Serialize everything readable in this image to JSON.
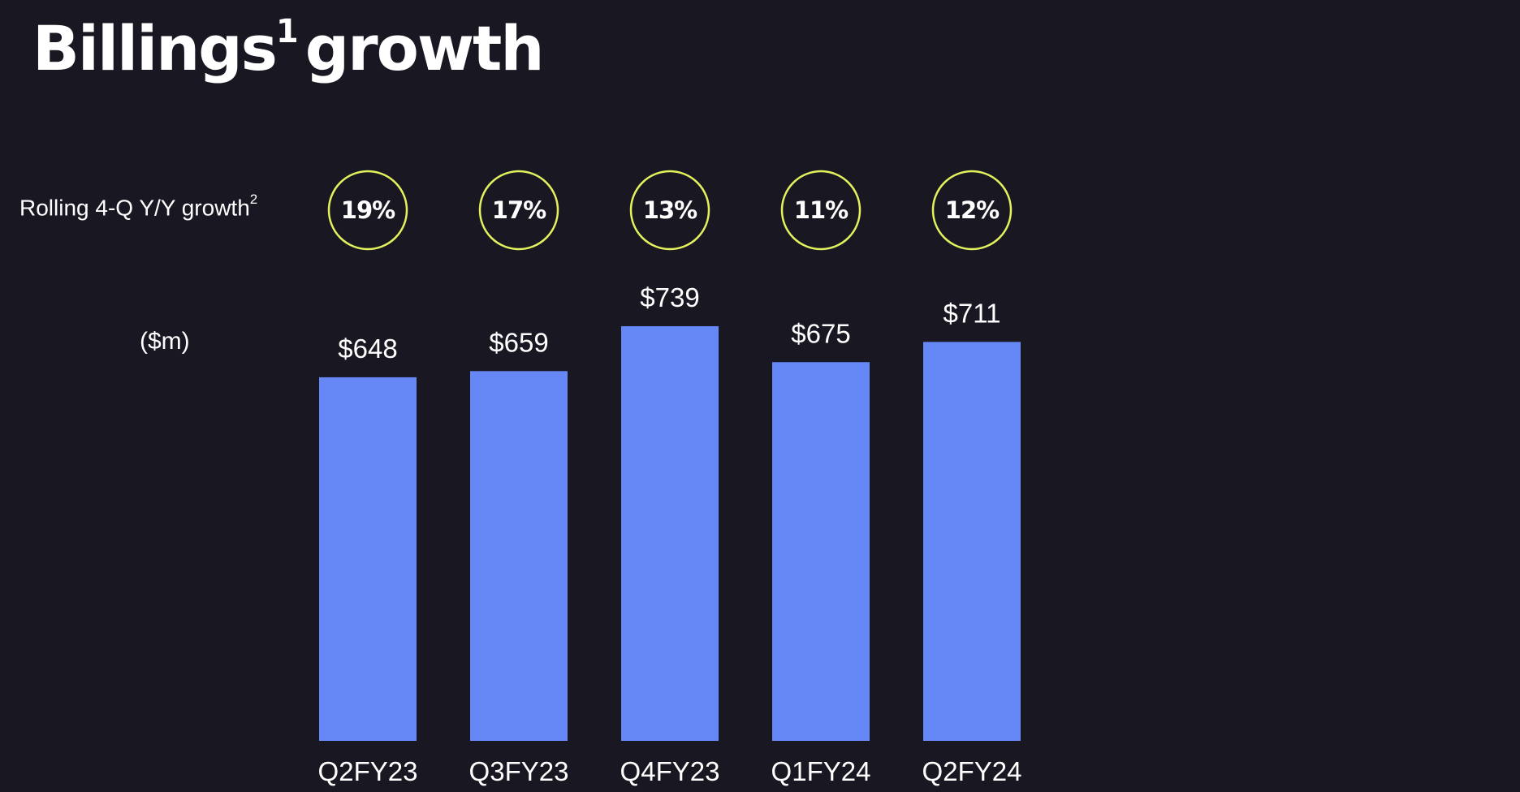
{
  "title": {
    "main": "Billings",
    "superscript": "1",
    "suffix": "growth"
  },
  "growth_row_label": {
    "text": "Rolling 4-Q Y/Y growth",
    "superscript": "2"
  },
  "units_label": "($m)",
  "colors": {
    "background": "#191822",
    "bar": "#6688F7",
    "circle_outline": "#E3F25C",
    "text": "#FFFFFF"
  },
  "chart_data": {
    "type": "bar",
    "title": "Billings1 growth",
    "xlabel": "",
    "ylabel": "($m)",
    "categories": [
      "Q2FY23",
      "Q3FY23",
      "Q4FY23",
      "Q1FY24",
      "Q2FY24"
    ],
    "values": [
      648,
      659,
      739,
      675,
      711
    ],
    "value_labels": [
      "$648",
      "$659",
      "$739",
      "$675",
      "$711"
    ],
    "growth_labels": [
      "19%",
      "17%",
      "13%",
      "11%",
      "12%"
    ],
    "ylim": [
      0,
      739
    ],
    "grid": false,
    "legend": "none"
  }
}
